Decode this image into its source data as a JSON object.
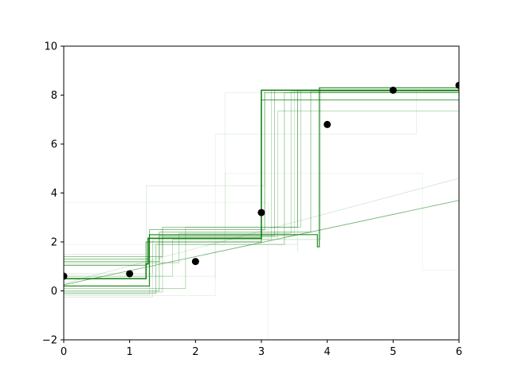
{
  "chart_data": {
    "type": "scatter",
    "title": "",
    "xlabel": "",
    "ylabel": "",
    "xlim": [
      0,
      6
    ],
    "ylim": [
      -2,
      10
    ],
    "x_ticks": [
      0,
      1,
      2,
      3,
      4,
      5,
      6
    ],
    "y_ticks": [
      -2,
      0,
      2,
      4,
      6,
      8,
      10
    ],
    "x_tick_labels": [
      "0",
      "1",
      "2",
      "3",
      "4",
      "5",
      "6"
    ],
    "y_tick_labels": [
      "−2",
      "0",
      "2",
      "4",
      "6",
      "8",
      "10"
    ],
    "grid": false,
    "legend": "none",
    "colors": {
      "points": "#000000",
      "steps": "#007700",
      "axes": "#000000"
    },
    "points": {
      "x": [
        0,
        1,
        2,
        3,
        4,
        5,
        6
      ],
      "y": [
        0.6,
        0.7,
        1.2,
        3.2,
        6.8,
        8.2,
        8.4
      ]
    },
    "step_functions": [
      {
        "opacity": 0.95,
        "width": 1.5,
        "steps": [
          [
            0,
            0.5
          ],
          [
            1.25,
            1.1
          ],
          [
            1.28,
            2.15
          ],
          [
            3.0,
            2.15
          ],
          [
            3.0,
            8.2
          ],
          [
            6,
            8.2
          ]
        ]
      },
      {
        "opacity": 0.85,
        "width": 1.2,
        "steps": [
          [
            0,
            0.2
          ],
          [
            1.3,
            2.3
          ],
          [
            3.85,
            1.8
          ],
          [
            3.88,
            8.3
          ],
          [
            6,
            8.3
          ]
        ]
      },
      {
        "opacity": 0.7,
        "width": 1.0,
        "steps": [
          [
            0,
            1.05
          ],
          [
            1.25,
            2.0
          ],
          [
            3.0,
            7.8
          ],
          [
            6,
            7.8
          ]
        ]
      },
      {
        "opacity": 0.6,
        "width": 0.8,
        "steps": [
          [
            0,
            1.3
          ],
          [
            1.3,
            2.5
          ],
          [
            3.05,
            8.1
          ],
          [
            6,
            8.1
          ]
        ]
      },
      {
        "opacity": 0.55,
        "width": 0.8,
        "steps": [
          [
            0,
            1.4
          ],
          [
            1.5,
            2.6
          ],
          [
            3.55,
            8.2
          ],
          [
            6,
            8.2
          ]
        ]
      },
      {
        "opacity": 0.5,
        "width": 0.8,
        "steps": [
          [
            0,
            1.2
          ],
          [
            1.45,
            2.4
          ],
          [
            3.75,
            8.15
          ],
          [
            6,
            8.15
          ]
        ]
      },
      {
        "opacity": 0.45,
        "width": 0.8,
        "steps": [
          [
            0,
            0.0
          ],
          [
            1.45,
            2.25
          ],
          [
            3.2,
            8.2
          ],
          [
            6,
            8.2
          ]
        ]
      },
      {
        "opacity": 0.45,
        "width": 0.8,
        "steps": [
          [
            0,
            -0.1
          ],
          [
            1.4,
            1.9
          ],
          [
            3.35,
            8.1
          ],
          [
            6,
            8.1
          ]
        ]
      },
      {
        "opacity": 0.4,
        "width": 0.7,
        "steps": [
          [
            0,
            0.1
          ],
          [
            1.85,
            2.6
          ],
          [
            3.6,
            8.2
          ],
          [
            6,
            8.2
          ]
        ]
      },
      {
        "opacity": 0.4,
        "width": 0.7,
        "steps": [
          [
            0,
            1.15
          ],
          [
            1.75,
            2.35
          ],
          [
            3.45,
            8.15
          ],
          [
            6,
            8.15
          ]
        ]
      },
      {
        "opacity": 0.35,
        "width": 0.7,
        "steps": [
          [
            0,
            -0.05
          ],
          [
            1.5,
            2.2
          ],
          [
            3.25,
            7.35
          ],
          [
            6,
            7.35
          ]
        ]
      },
      {
        "opacity": 0.35,
        "width": 0.7,
        "steps": [
          [
            0,
            0.6
          ],
          [
            1.65,
            2.1
          ],
          [
            3.15,
            8.2
          ],
          [
            6,
            8.2
          ]
        ]
      },
      {
        "opacity": 0.3,
        "width": 0.6,
        "steps": [
          [
            0,
            0.7
          ],
          [
            1.35,
            2.1
          ],
          [
            3.9,
            8.3
          ],
          [
            6,
            8.3
          ]
        ]
      },
      {
        "opacity": 0.3,
        "width": 0.6,
        "steps": [
          [
            0,
            -0.15
          ],
          [
            1.3,
            2.25
          ],
          [
            3.5,
            2.5
          ],
          [
            3.5,
            8.2
          ],
          [
            6,
            8.2
          ]
        ]
      },
      {
        "opacity": 0.22,
        "width": 0.6,
        "steps": [
          [
            0,
            -0.25
          ],
          [
            1.35,
            1.9
          ],
          [
            3.55,
            1.6
          ],
          [
            3.55,
            8.15
          ],
          [
            6,
            8.15
          ]
        ]
      },
      {
        "opacity": 0.2,
        "width": 0.6,
        "steps": [
          [
            0,
            1.5
          ],
          [
            1.25,
            2.5
          ],
          [
            1.25,
            4.3
          ],
          [
            3.05,
            4.3
          ],
          [
            3.05,
            8.2
          ],
          [
            6,
            8.2
          ]
        ]
      },
      {
        "opacity": 0.15,
        "width": 0.6,
        "steps": [
          [
            0,
            -0.2
          ],
          [
            2.3,
            0.5
          ],
          [
            2.3,
            2.0
          ],
          [
            2.45,
            8.1
          ],
          [
            6,
            8.1
          ]
        ]
      },
      {
        "opacity": 0.15,
        "width": 0.6,
        "steps": [
          [
            0,
            0.6
          ],
          [
            2.3,
            0.5
          ],
          [
            2.3,
            6.4
          ],
          [
            5.35,
            6.4
          ],
          [
            5.35,
            8.2
          ],
          [
            6,
            8.2
          ]
        ]
      },
      {
        "opacity": 0.12,
        "width": 0.5,
        "steps": [
          [
            0,
            1.9
          ],
          [
            2.45,
            4.8
          ],
          [
            5.45,
            4.8
          ],
          [
            5.45,
            0.85
          ],
          [
            6,
            0.85
          ]
        ]
      },
      {
        "opacity": 0.12,
        "width": 0.5,
        "steps": [
          [
            0,
            3.6
          ],
          [
            3.1,
            -2.0
          ]
        ]
      }
    ],
    "trend_lines": [
      {
        "opacity": 0.6,
        "width": 0.8,
        "from": [
          0,
          0.25
        ],
        "to": [
          6,
          3.7
        ]
      },
      {
        "opacity": 0.25,
        "width": 0.6,
        "from": [
          0,
          0.3
        ],
        "to": [
          6,
          4.6
        ]
      }
    ]
  }
}
